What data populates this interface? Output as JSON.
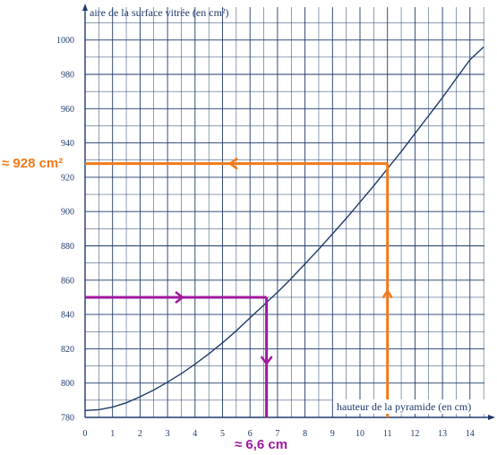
{
  "chart_data": {
    "type": "line",
    "ylabel": "aire de la surface vitrée (en cm²)",
    "xlabel": "hauteur de la pyramide (en cm)",
    "xlim": [
      0,
      14.6
    ],
    "ylim": [
      780,
      1010
    ],
    "x_ticks": [
      "0",
      "1",
      "2",
      "3",
      "4",
      "5",
      "6",
      "7",
      "8",
      "9",
      "10",
      "11",
      "12",
      "13",
      "14"
    ],
    "y_ticks": [
      {
        "value": 780,
        "label": "780"
      },
      {
        "value": 800,
        "label": "800"
      },
      {
        "value": 820,
        "label": "820"
      },
      {
        "value": 840,
        "label": "840"
      },
      {
        "value": 860,
        "label": "860"
      },
      {
        "value": 880,
        "label": "880"
      },
      {
        "value": 900,
        "label": "900"
      },
      {
        "value": 920,
        "label": "920"
      },
      {
        "value": 940,
        "label": "940"
      },
      {
        "value": 960,
        "label": "960"
      },
      {
        "value": 980,
        "label": "980"
      },
      {
        "value": 1000,
        "label": "1000"
      }
    ],
    "grid": true,
    "series": [
      {
        "x": [
          0,
          0.5,
          1,
          1.5,
          2,
          2.5,
          3,
          3.5,
          4,
          4.5,
          5,
          5.5,
          6,
          6.5,
          7,
          7.5,
          8,
          8.5,
          9,
          9.5,
          10,
          10.5,
          11,
          11.5,
          12,
          12.5,
          13,
          13.5,
          14,
          14.5
        ],
        "y": [
          784,
          784.5,
          786,
          788.5,
          792,
          796,
          800.5,
          805.5,
          811,
          817,
          823.5,
          830.5,
          838,
          845.5,
          853,
          861,
          869.5,
          878,
          887,
          896,
          905.5,
          915,
          925,
          935,
          945.5,
          956,
          966.5,
          977.5,
          988.5,
          996
        ]
      }
    ],
    "annotations": {
      "orange": {
        "label": "≈ 928 cm²",
        "x": 11,
        "y": 928,
        "color": "#f07a1a"
      },
      "purple": {
        "label": "≈ 6,6 cm",
        "x": 6.6,
        "y": 850,
        "color": "#a0199f"
      }
    },
    "colors": {
      "grid": "#1f3a6b",
      "curve": "#1f3a6b"
    }
  }
}
